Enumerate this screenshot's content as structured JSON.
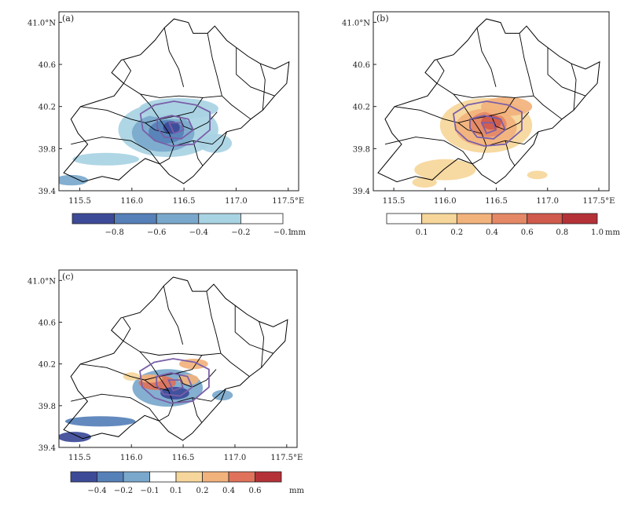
{
  "chart_data": [
    {
      "type": "heatmap",
      "panel_label": "(a)",
      "title": "",
      "xlabel": "",
      "ylabel": "",
      "xlim": [
        115.3,
        117.6
      ],
      "ylim": [
        39.4,
        41.1
      ],
      "x_tick_values": [
        115.5,
        116.0,
        116.5,
        117.0,
        117.5
      ],
      "x_tick_labels": [
        "115.5",
        "116.0",
        "116.5",
        "117.0",
        "117.5°E"
      ],
      "y_tick_values": [
        39.4,
        39.8,
        40.2,
        40.6,
        41.0
      ],
      "y_tick_labels": [
        "39.4",
        "39.8",
        "40.2",
        "40.6",
        "41.0°N"
      ],
      "colorbar": {
        "colors": [
          "#3c4a98",
          "#5680b8",
          "#79a8cc",
          "#a8d3e3",
          "#ffffff"
        ],
        "labels": [
          "−0.8",
          "−0.6",
          "−0.4",
          "−0.2",
          "−0.1"
        ],
        "unit": "mm"
      },
      "fields": [
        {
          "lon": 116.35,
          "lat": 39.98,
          "rx": 0.48,
          "ry": 0.26,
          "level": 3
        },
        {
          "lon": 116.3,
          "lat": 39.95,
          "rx": 0.3,
          "ry": 0.18,
          "level": 2
        },
        {
          "lon": 116.33,
          "lat": 39.96,
          "rx": 0.17,
          "ry": 0.11,
          "level": 1
        },
        {
          "lon": 116.38,
          "lat": 40.0,
          "rx": 0.08,
          "ry": 0.06,
          "level": 0
        },
        {
          "lon": 116.45,
          "lat": 40.18,
          "rx": 0.38,
          "ry": 0.1,
          "level": 3
        },
        {
          "lon": 115.75,
          "lat": 39.7,
          "rx": 0.32,
          "ry": 0.06,
          "level": 3
        },
        {
          "lon": 115.42,
          "lat": 39.5,
          "rx": 0.16,
          "ry": 0.05,
          "level": 2
        },
        {
          "lon": 116.8,
          "lat": 39.85,
          "rx": 0.16,
          "ry": 0.09,
          "level": 3
        }
      ]
    },
    {
      "type": "heatmap",
      "panel_label": "(b)",
      "title": "",
      "xlabel": "",
      "ylabel": "",
      "xlim": [
        115.3,
        117.6
      ],
      "ylim": [
        39.4,
        41.1
      ],
      "x_tick_values": [
        115.5,
        116.0,
        116.5,
        117.0,
        117.5
      ],
      "x_tick_labels": [
        "115.5",
        "116.0",
        "116.5",
        "117.0",
        "117.5°E"
      ],
      "y_tick_values": [
        39.4,
        39.8,
        40.2,
        40.6,
        41.0
      ],
      "y_tick_labels": [
        "39.4",
        "39.8",
        "40.2",
        "40.6",
        "41.0°N"
      ],
      "colorbar": {
        "colors": [
          "#ffffff",
          "#f6d69a",
          "#f2b27c",
          "#e58866",
          "#d05a4c",
          "#b53138"
        ],
        "labels": [
          "0.1",
          "0.2",
          "0.4",
          "0.6",
          "0.8",
          "1.0"
        ],
        "unit": "mm"
      },
      "fields": [
        {
          "lon": 116.4,
          "lat": 40.02,
          "rx": 0.45,
          "ry": 0.26,
          "level": 1
        },
        {
          "lon": 116.4,
          "lat": 40.0,
          "rx": 0.3,
          "ry": 0.18,
          "level": 2
        },
        {
          "lon": 116.42,
          "lat": 40.03,
          "rx": 0.18,
          "ry": 0.12,
          "level": 3
        },
        {
          "lon": 116.45,
          "lat": 40.05,
          "rx": 0.1,
          "ry": 0.07,
          "level": 4
        },
        {
          "lon": 116.6,
          "lat": 40.2,
          "rx": 0.25,
          "ry": 0.09,
          "level": 2
        },
        {
          "lon": 116.0,
          "lat": 39.6,
          "rx": 0.3,
          "ry": 0.1,
          "level": 1
        },
        {
          "lon": 115.8,
          "lat": 39.48,
          "rx": 0.12,
          "ry": 0.05,
          "level": 1
        },
        {
          "lon": 116.9,
          "lat": 39.55,
          "rx": 0.1,
          "ry": 0.04,
          "level": 1
        }
      ]
    },
    {
      "type": "heatmap",
      "panel_label": "(c)",
      "title": "",
      "xlabel": "",
      "ylabel": "",
      "xlim": [
        115.3,
        117.6
      ],
      "ylim": [
        39.4,
        41.1
      ],
      "x_tick_values": [
        115.5,
        116.0,
        116.5,
        117.0,
        117.5
      ],
      "x_tick_labels": [
        "115.5",
        "116.0",
        "116.5",
        "117.0",
        "117.5°E"
      ],
      "y_tick_values": [
        39.4,
        39.8,
        40.2,
        40.6,
        41.0
      ],
      "y_tick_labels": [
        "39.4",
        "39.8",
        "40.2",
        "40.6",
        "41.0°N"
      ],
      "colorbar": {
        "colors": [
          "#3c4a98",
          "#5680b8",
          "#79a8cc",
          "#ffffff",
          "#f6d69a",
          "#f2b27c",
          "#e0715a",
          "#b53138"
        ],
        "labels": [
          "−0.4",
          "−0.2",
          "−0.1",
          "0.1",
          "0.2",
          "0.4",
          "0.6"
        ],
        "unit": "mm"
      },
      "fields": [
        {
          "lon": 116.35,
          "lat": 39.97,
          "rx": 0.34,
          "ry": 0.18,
          "level": 2
        },
        {
          "lon": 116.25,
          "lat": 40.02,
          "rx": 0.18,
          "ry": 0.07,
          "level": 6
        },
        {
          "lon": 116.42,
          "lat": 39.92,
          "rx": 0.14,
          "ry": 0.06,
          "level": 0
        },
        {
          "lon": 116.55,
          "lat": 40.05,
          "rx": 0.1,
          "ry": 0.05,
          "level": 5
        },
        {
          "lon": 116.18,
          "lat": 40.06,
          "rx": 0.12,
          "ry": 0.04,
          "level": 5
        },
        {
          "lon": 115.7,
          "lat": 39.65,
          "rx": 0.34,
          "ry": 0.05,
          "level": 1
        },
        {
          "lon": 115.45,
          "lat": 39.5,
          "rx": 0.16,
          "ry": 0.05,
          "level": 0
        },
        {
          "lon": 116.6,
          "lat": 40.2,
          "rx": 0.14,
          "ry": 0.05,
          "level": 5
        },
        {
          "lon": 116.0,
          "lat": 40.08,
          "rx": 0.08,
          "ry": 0.04,
          "level": 4
        },
        {
          "lon": 116.88,
          "lat": 39.9,
          "rx": 0.1,
          "ry": 0.05,
          "level": 2
        }
      ]
    }
  ]
}
